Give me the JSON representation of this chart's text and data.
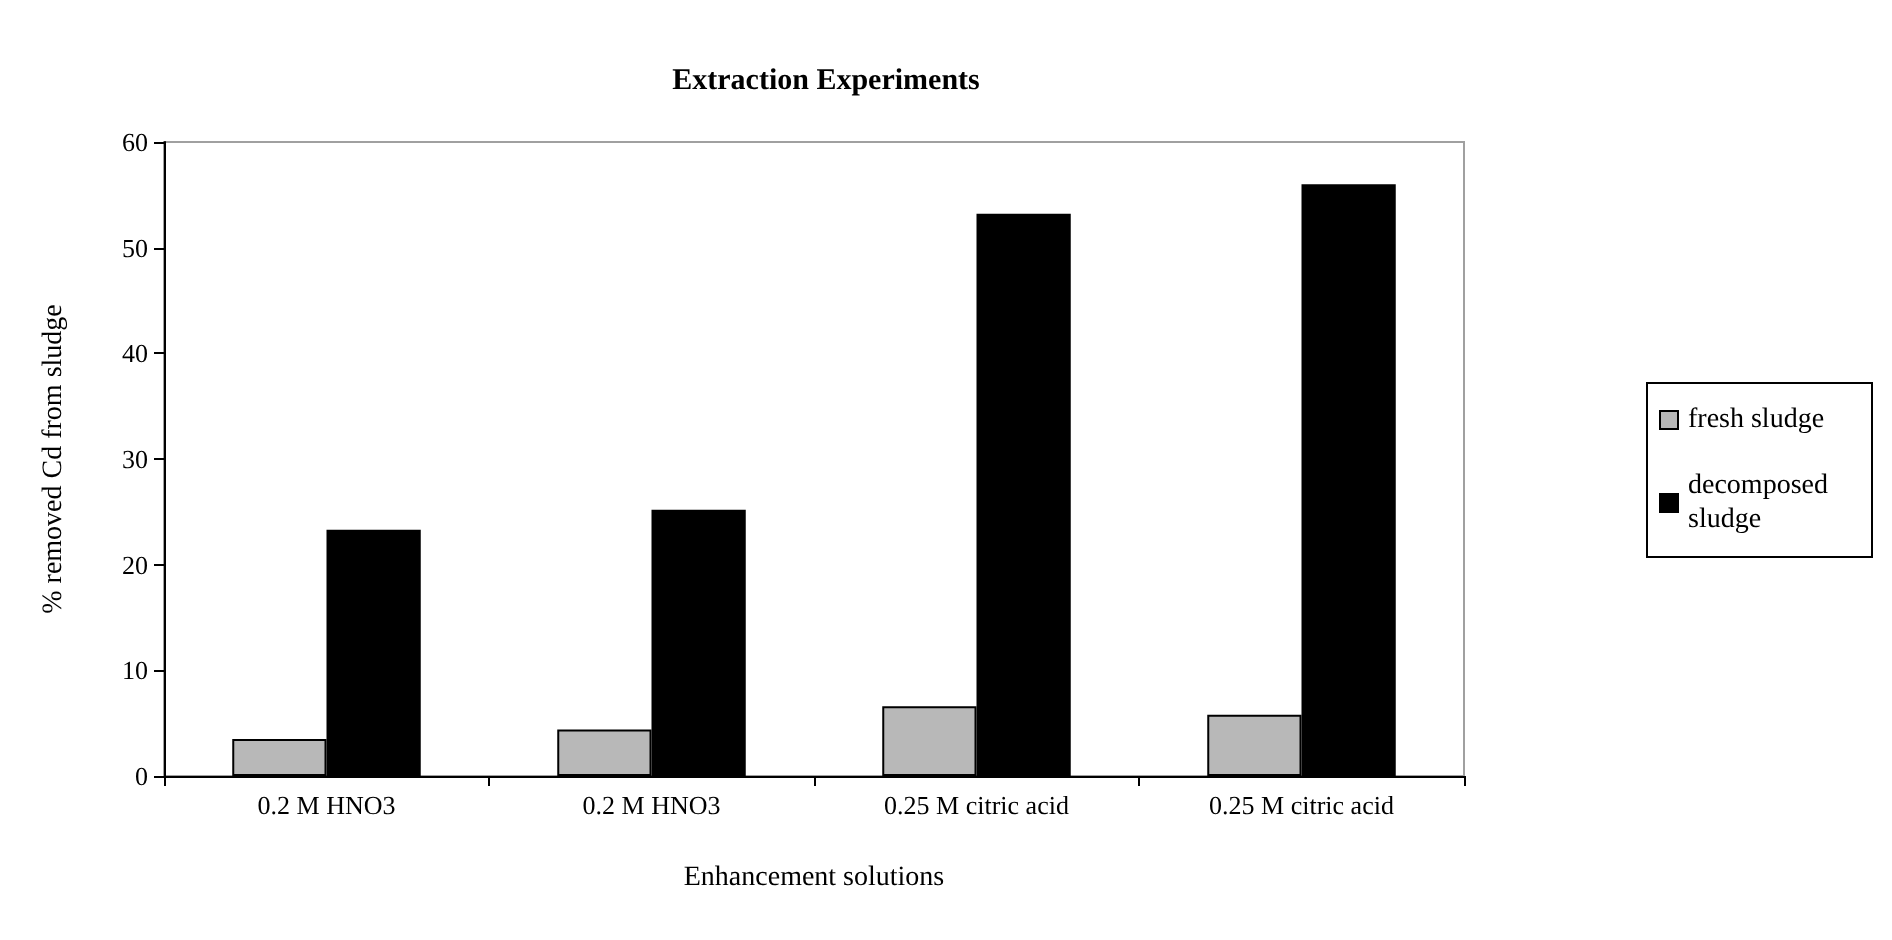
{
  "chart_data": {
    "type": "bar",
    "title": "Extraction Experiments",
    "xlabel": "Enhancement solutions",
    "ylabel": "% removed Cd from sludge",
    "categories": [
      "0.2 M HNO3",
      "0.2 M HNO3",
      "0.25 M citric acid",
      "0.25 M citric acid"
    ],
    "series": [
      {
        "name": "fresh sludge",
        "color": "#b8b8b8",
        "values": [
          3.5,
          4.4,
          6.6,
          5.8
        ]
      },
      {
        "name": "decomposed sludge",
        "color": "#000000",
        "values": [
          23.3,
          25.2,
          53.2,
          56.0
        ]
      }
    ],
    "ylim": [
      0,
      60
    ],
    "yticks": [
      0,
      10,
      20,
      30,
      40,
      50,
      60
    ],
    "grid": false,
    "legend": "right"
  }
}
